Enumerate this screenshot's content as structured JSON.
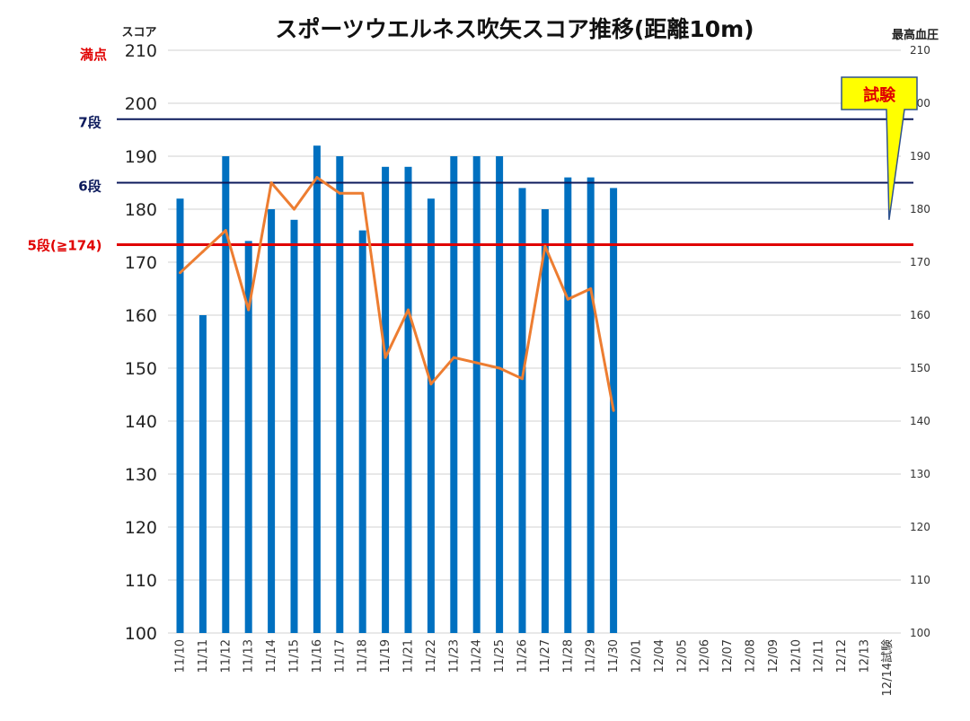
{
  "chart_data": {
    "type": "bar",
    "title": "スポーツウエルネス吹矢スコア推移(距離10m)",
    "ylabel_left": "スコア",
    "ylabel_right": "最高血圧",
    "ylim_left": [
      100,
      210
    ],
    "ylim_right": [
      100,
      210
    ],
    "yticks": [
      100,
      110,
      120,
      130,
      140,
      150,
      160,
      170,
      180,
      190,
      200,
      210
    ],
    "grid": true,
    "categories": [
      "11/10",
      "11/11",
      "11/12",
      "11/13",
      "11/14",
      "11/15",
      "11/16",
      "11/17",
      "11/18",
      "11/19",
      "11/21",
      "11/22",
      "11/23",
      "11/24",
      "11/25",
      "11/26",
      "11/27",
      "11/28",
      "11/29",
      "11/30",
      "12/01",
      "12/04",
      "12/05",
      "12/06",
      "12/07",
      "12/08",
      "12/09",
      "12/10",
      "12/11",
      "12/12",
      "12/13",
      "12/14試験"
    ],
    "series": [
      {
        "axis": "left",
        "kind": "bar",
        "color": "#0070c0",
        "values": [
          182,
          160,
          190,
          174,
          180,
          178,
          192,
          190,
          176,
          188,
          188,
          182,
          190,
          190,
          190,
          184,
          180,
          186,
          186,
          184,
          null,
          null,
          null,
          null,
          null,
          null,
          null,
          null,
          null,
          null,
          null,
          null
        ]
      },
      {
        "axis": "right",
        "kind": "line",
        "color": "#ed7d31",
        "values": [
          168,
          172,
          176,
          161,
          185,
          180,
          186,
          183,
          183,
          152,
          161,
          147,
          152,
          151,
          150,
          148,
          173,
          163,
          165,
          142,
          null,
          null,
          null,
          null,
          null,
          null,
          null,
          null,
          null,
          null,
          null,
          null
        ]
      }
    ],
    "reference_lines": [
      {
        "label": "満点",
        "value": 210,
        "color": "#e00000",
        "style": "grid"
      },
      {
        "label": "7段",
        "value": 197,
        "color": "#0c1a5c",
        "style": "line"
      },
      {
        "label": "6段",
        "value": 185,
        "color": "#0c1a5c",
        "style": "line"
      },
      {
        "label": "5段(≧174)",
        "value": 173.3,
        "color": "#e00000",
        "style": "thick"
      }
    ],
    "callout": {
      "text": "試験",
      "fill": "#ffff00",
      "border": "#2f528f",
      "points_to": "12/14試験"
    }
  }
}
